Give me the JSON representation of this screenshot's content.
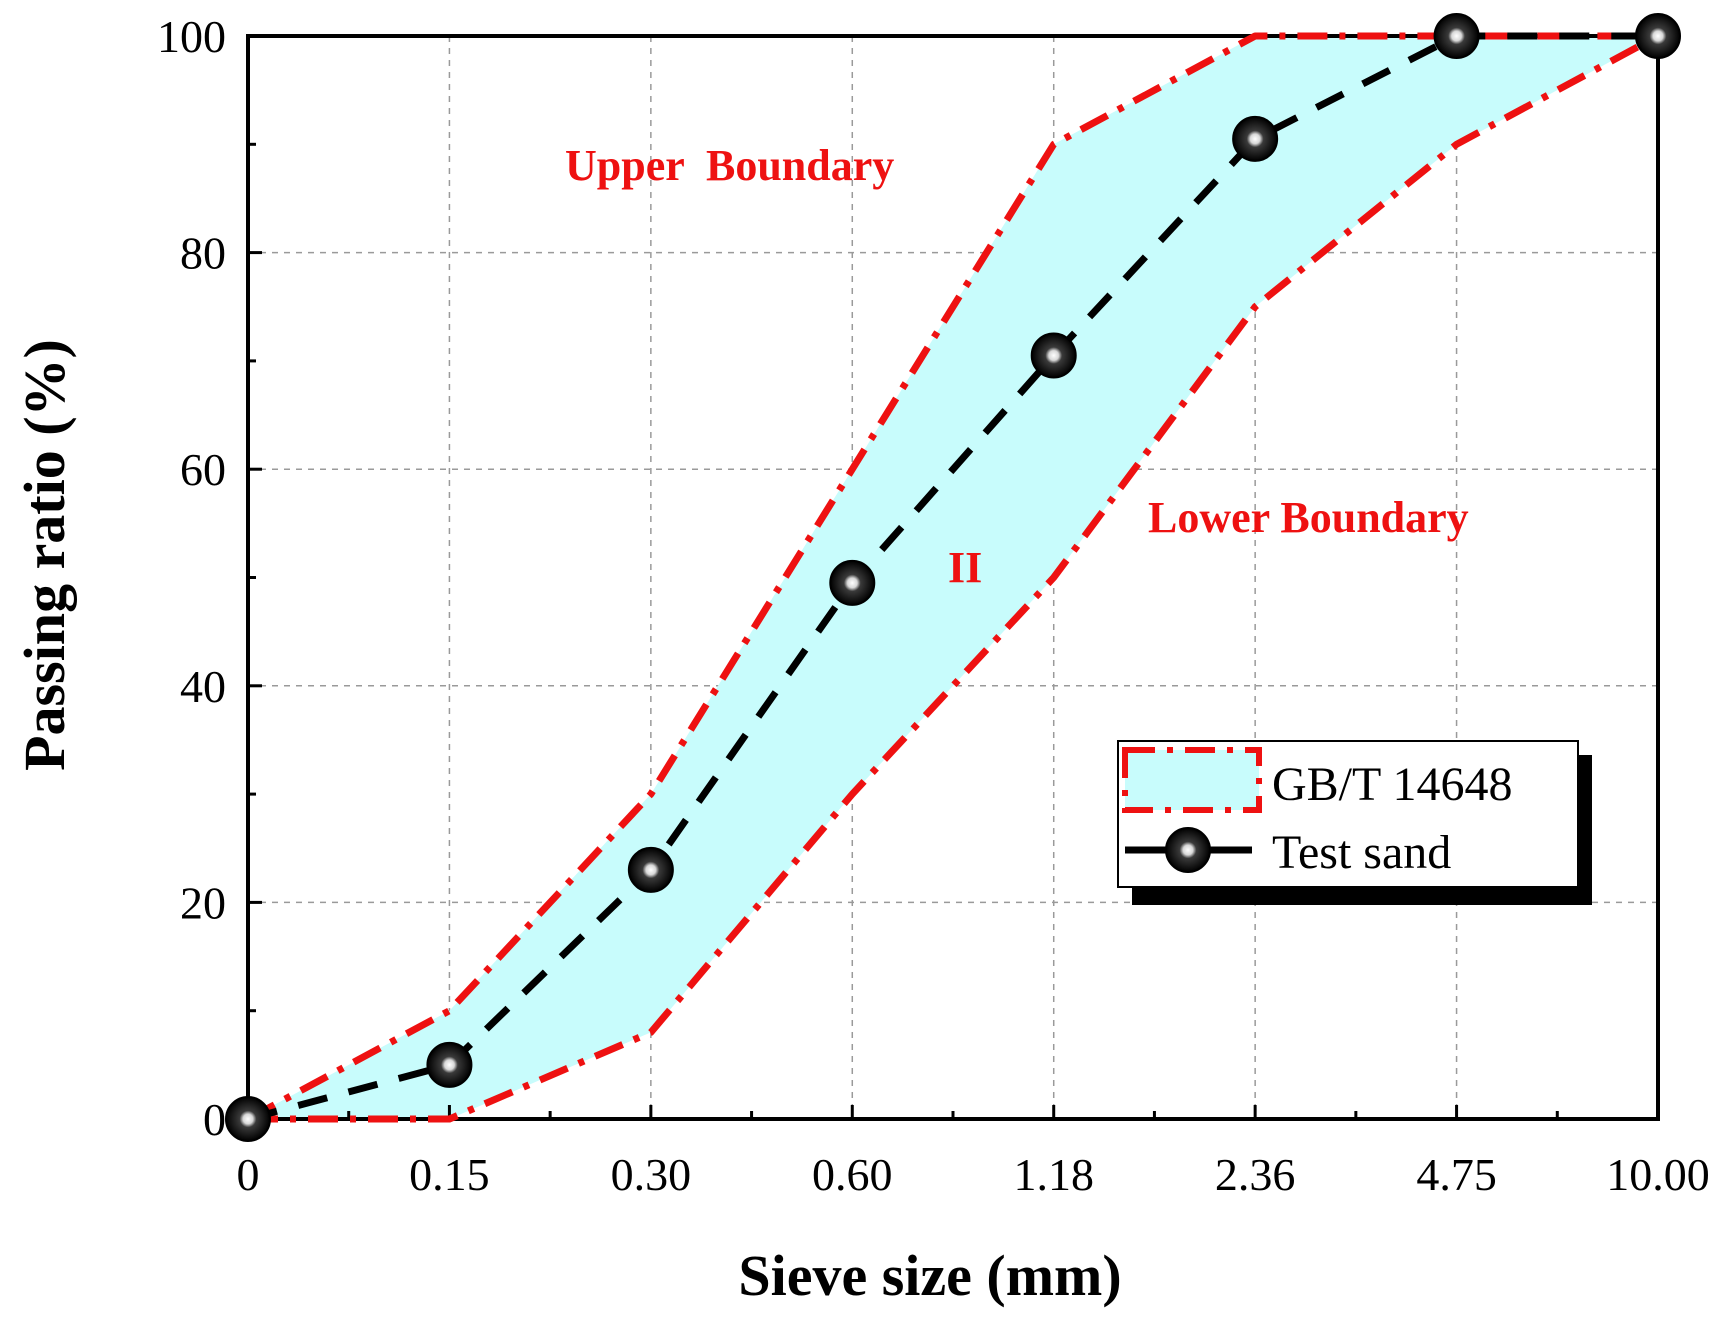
{
  "chart_data": {
    "type": "line",
    "title": "",
    "xlabel": "Sieve size (mm)",
    "ylabel": "Passing ratio (%)",
    "categories": [
      "0",
      "0.15",
      "0.30",
      "0.60",
      "1.18",
      "2.36",
      "4.75",
      "10.00"
    ],
    "ylim": [
      0,
      100
    ],
    "yticks": [
      "0",
      "20",
      "40",
      "60",
      "80",
      "100"
    ],
    "grid": true,
    "band": {
      "name": "GB/T 14648",
      "upper": [
        0,
        10,
        30,
        60,
        90,
        100,
        100,
        100
      ],
      "lower": [
        0,
        0,
        8,
        30,
        50,
        75,
        90,
        100
      ],
      "fill_color": "#c8fcfc",
      "line_color": "#ee1111"
    },
    "series": [
      {
        "name": "Test sand",
        "values": [
          0,
          5,
          23,
          49.5,
          70.5,
          90.5,
          100,
          100
        ],
        "color": "#000000"
      }
    ],
    "annotations": {
      "upper": "Upper  Boundary",
      "lower": "Lower Boundary",
      "zone": "II"
    },
    "legend": {
      "placement": "lower-right",
      "entries": [
        "GB/T 14648",
        "Test sand"
      ]
    }
  }
}
